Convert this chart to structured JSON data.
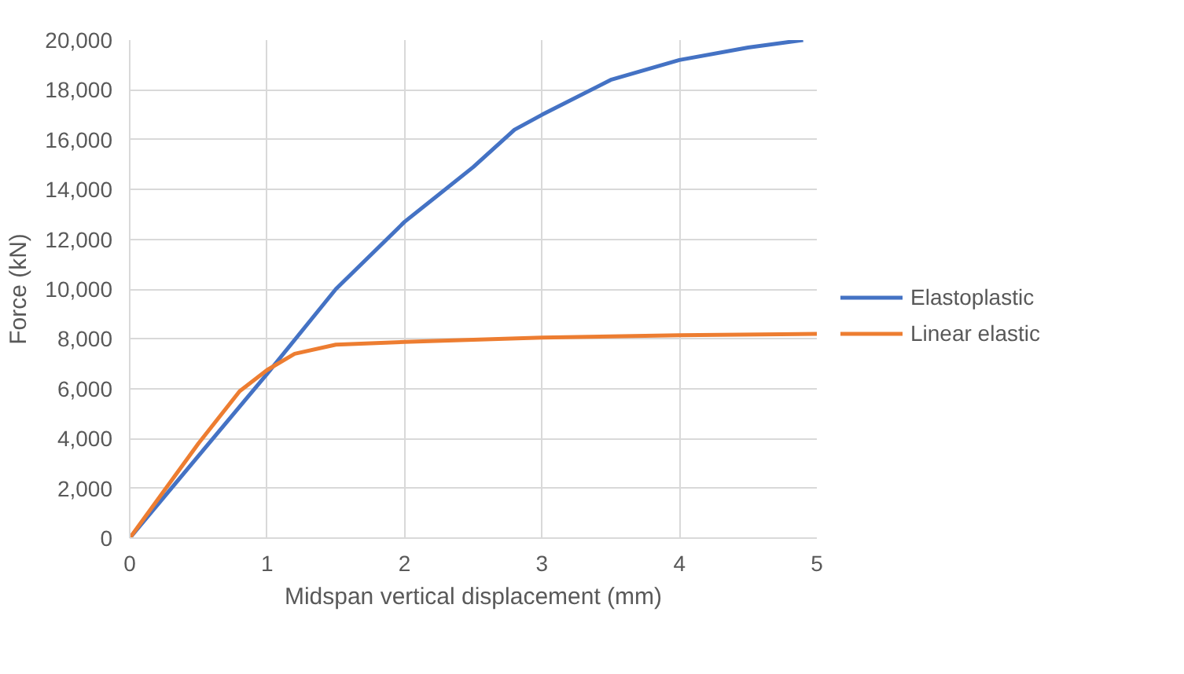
{
  "chart_data": {
    "type": "line",
    "xlabel": "Midspan vertical displacement (mm)",
    "ylabel": "Force (kN)",
    "xlim": [
      0,
      5
    ],
    "xticks": [
      0,
      1,
      2,
      3,
      4,
      5
    ],
    "ylim": [
      0,
      20000
    ],
    "yticks": [
      {
        "value": 0,
        "label": "0"
      },
      {
        "value": 2000,
        "label": "2,000"
      },
      {
        "value": 4000,
        "label": "4,000"
      },
      {
        "value": 6000,
        "label": "6,000"
      },
      {
        "value": 8000,
        "label": "8,000"
      },
      {
        "value": 10000,
        "label": "10,000"
      },
      {
        "value": 12000,
        "label": "12,000"
      },
      {
        "value": 14000,
        "label": "14,000"
      },
      {
        "value": 16000,
        "label": "16,000"
      },
      {
        "value": 18000,
        "label": "18,000"
      },
      {
        "value": 20000,
        "label": "20,000"
      }
    ],
    "grid": true,
    "legend": "right",
    "marker": "none",
    "line_style": "solid",
    "series": [
      {
        "name": "Elastoplastic",
        "color": "#4472c4",
        "x": [
          0,
          0.5,
          1,
          1.5,
          2,
          2.5,
          2.8,
          3,
          3.5,
          4,
          4.5,
          4.9
        ],
        "values": [
          0,
          3300,
          6600,
          10000,
          12700,
          14900,
          16400,
          17000,
          18400,
          19200,
          19700,
          20000
        ]
      },
      {
        "name": "Linear elastic",
        "color": "#ed7d31",
        "x": [
          0,
          0.5,
          0.8,
          1,
          1.2,
          1.5,
          2,
          3,
          4,
          5
        ],
        "values": [
          0,
          3800,
          5900,
          6750,
          7400,
          7770,
          7880,
          8050,
          8150,
          8200
        ]
      }
    ]
  }
}
